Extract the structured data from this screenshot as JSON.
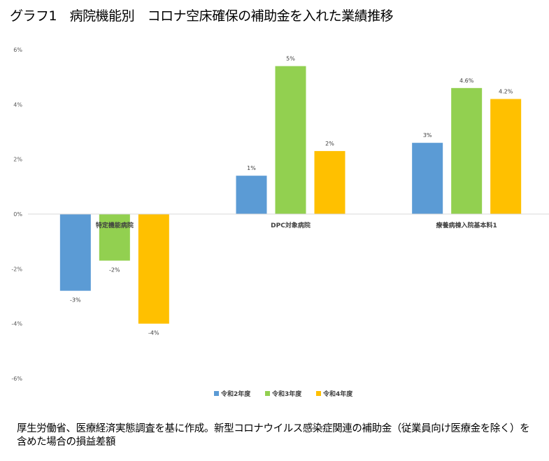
{
  "chart_data": {
    "type": "bar",
    "title": "グラフ1　病院機能別　コロナ空床確保の補助金を入れた業績推移",
    "categories": [
      "特定機能病院",
      "DPC対象病院",
      "療養病棟入院基本料1"
    ],
    "series": [
      {
        "name": "令和2年度",
        "color": "#5B9BD5",
        "values": [
          -2.8,
          1.4,
          2.6
        ],
        "labels": [
          "-3%",
          "1%",
          "3%"
        ]
      },
      {
        "name": "令和3年度",
        "color": "#92D050",
        "values": [
          -1.7,
          5.4,
          4.6
        ],
        "labels": [
          "-2%",
          "5%",
          "4.6%"
        ]
      },
      {
        "name": "令和4年度",
        "color": "#FFC000",
        "values": [
          -4.0,
          2.3,
          4.2
        ],
        "labels": [
          "-4%",
          "2%",
          "4.2%"
        ]
      }
    ],
    "yticks": [
      "6%",
      "4%",
      "2%",
      "0%",
      "-2%",
      "-4%",
      "-6%"
    ],
    "ytick_values": [
      6,
      4,
      2,
      0,
      -2,
      -4,
      -6
    ],
    "ylim": [
      -6,
      6
    ],
    "xlabel": "",
    "ylabel": "",
    "grid": false,
    "legend": "bottom"
  },
  "note": "厚生労働省、医療経済実態調査を基に作成。新型コロナウイルス感染症関連の補助金（従業員向け医療金を除く）を含めた場合の損益差額"
}
